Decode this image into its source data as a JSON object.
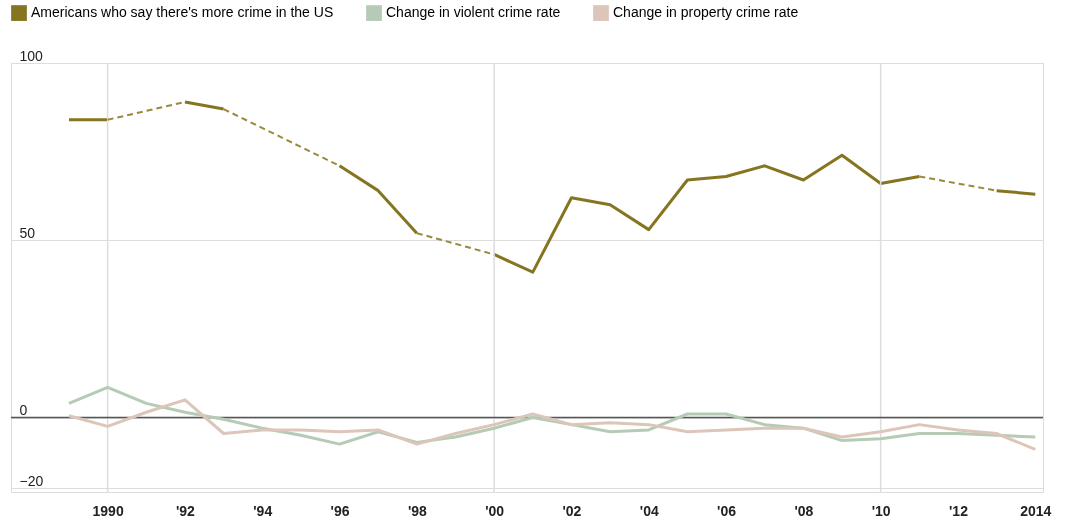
{
  "chart_data": {
    "type": "line",
    "x": [
      1989,
      1990,
      1991,
      1992,
      1993,
      1994,
      1995,
      1996,
      1997,
      1998,
      1999,
      2000,
      2001,
      2002,
      2003,
      2004,
      2005,
      2006,
      2007,
      2008,
      2009,
      2010,
      2011,
      2012,
      2013,
      2014
    ],
    "series": [
      {
        "name": "Americans who say there's more crime in the US",
        "color": "#857420",
        "line_style": "solid",
        "values": [
          84,
          84,
          null,
          89,
          87,
          null,
          null,
          71,
          64,
          52,
          null,
          46,
          41,
          62,
          60,
          53,
          67,
          68,
          71,
          67,
          74,
          66,
          68,
          null,
          64,
          63
        ]
      },
      {
        "color": "#9a8a3c",
        "line_style": "dashed",
        "x": [
          1990,
          1992
        ],
        "values": [
          84,
          89
        ]
      },
      {
        "color": "#9a8a3c",
        "line_style": "dashed",
        "x": [
          1993,
          1996
        ],
        "values": [
          87,
          71
        ]
      },
      {
        "color": "#9a8a3c",
        "line_style": "dashed",
        "x": [
          1998,
          2000
        ],
        "values": [
          52,
          46
        ]
      },
      {
        "color": "#9a8a3c",
        "line_style": "dashed",
        "x": [
          2011,
          2013
        ],
        "values": [
          68,
          64
        ]
      },
      {
        "name": "Change in violent crime rate",
        "color": "#b5cbb5",
        "line_style": "solid",
        "values": [
          4,
          8.5,
          4,
          1.5,
          -0.5,
          -3,
          -5,
          -7.5,
          -4,
          -7,
          -5.5,
          -3,
          0,
          -2,
          -4,
          -3.5,
          1,
          1,
          -2,
          -3,
          -6.5,
          -6,
          -4.5,
          -4.5,
          -5,
          -5.5
        ]
      },
      {
        "name": "Change in property crime rate",
        "color": "#dcc5b9",
        "line_style": "solid",
        "values": [
          0.5,
          -2.5,
          1.5,
          5,
          -4.5,
          -3.5,
          -3.5,
          -4,
          -3.5,
          -7.5,
          -4.5,
          -2,
          1,
          -2,
          -1.5,
          -2,
          -4,
          -3.5,
          -3,
          -3,
          -5.5,
          -4,
          -2,
          -3.5,
          -4.5,
          -9
        ]
      }
    ],
    "xlim": [
      1987.5,
      2014.2
    ],
    "xticks": [
      {
        "value": 1990,
        "label": "1990"
      },
      {
        "value": 1992,
        "label": "'92"
      },
      {
        "value": 1994,
        "label": "'94"
      },
      {
        "value": 1996,
        "label": "'96"
      },
      {
        "value": 1998,
        "label": "'98"
      },
      {
        "value": 2000,
        "label": "'00"
      },
      {
        "value": 2002,
        "label": "'02"
      },
      {
        "value": 2004,
        "label": "'04"
      },
      {
        "value": 2006,
        "label": "'06"
      },
      {
        "value": 2008,
        "label": "'08"
      },
      {
        "value": 2010,
        "label": "'10"
      },
      {
        "value": 2012,
        "label": "'12"
      },
      {
        "value": 2014,
        "label": "2014"
      }
    ],
    "ylim": [
      -21,
      100
    ],
    "yticks": [
      -20,
      0,
      50,
      100
    ],
    "grid": "y",
    "legend": "top",
    "marker": "none",
    "ref_lines": [
      {
        "axis": "x",
        "value": 1990,
        "color": "#dddddd"
      },
      {
        "axis": "x",
        "value": 2000,
        "color": "#dddddd"
      },
      {
        "axis": "x",
        "value": 2010,
        "color": "#dddddd"
      },
      {
        "axis": "y",
        "value": 0,
        "color": "#555555"
      }
    ]
  }
}
